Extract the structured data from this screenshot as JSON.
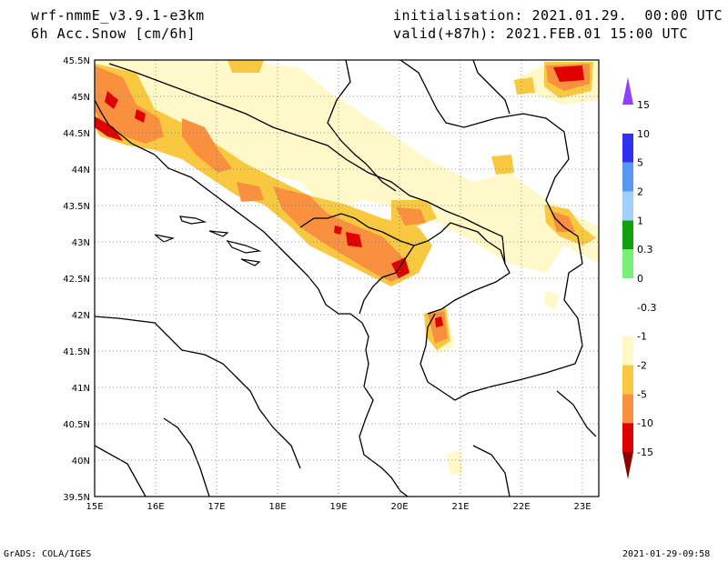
{
  "header": {
    "model": "wrf-nmmE_v3.9.1-e3km",
    "variable": "6h Acc.Snow [cm/6h]",
    "init": "initialisation: 2021.01.29.  00:00 UTC",
    "valid": "valid(+87h): 2021.FEB.01 15:00 UTC"
  },
  "map": {
    "lat_labels": [
      "45.5N",
      "45N",
      "44.5N",
      "44N",
      "43.5N",
      "43N",
      "42.5N",
      "42N",
      "41.5N",
      "41N",
      "40.5N",
      "40N",
      "39.5N"
    ],
    "lon_labels": [
      "15E",
      "16E",
      "17E",
      "18E",
      "19E",
      "20E",
      "21E",
      "22E",
      "23E"
    ],
    "lat_range": [
      39.5,
      45.5
    ],
    "lon_range": [
      15,
      23.3
    ],
    "grid": "dotted"
  },
  "legend": {
    "colors": [
      "#8b0000",
      "#e00000",
      "#f89040",
      "#f8c840",
      "#fff8c8",
      "#ffffff",
      "#ffffff",
      "#78f078",
      "#10a010",
      "#a0d0f8",
      "#5898f0",
      "#3030f0",
      "#9040f8"
    ],
    "labels": [
      "-15",
      "-10",
      "-5",
      "-2",
      "-1",
      "-0.3",
      "0",
      "0.3",
      "1",
      "2",
      "5",
      "10",
      "15"
    ]
  },
  "footer": {
    "left": "GrADS: COLA/IGES",
    "right": "2021-01-29-09:58"
  }
}
